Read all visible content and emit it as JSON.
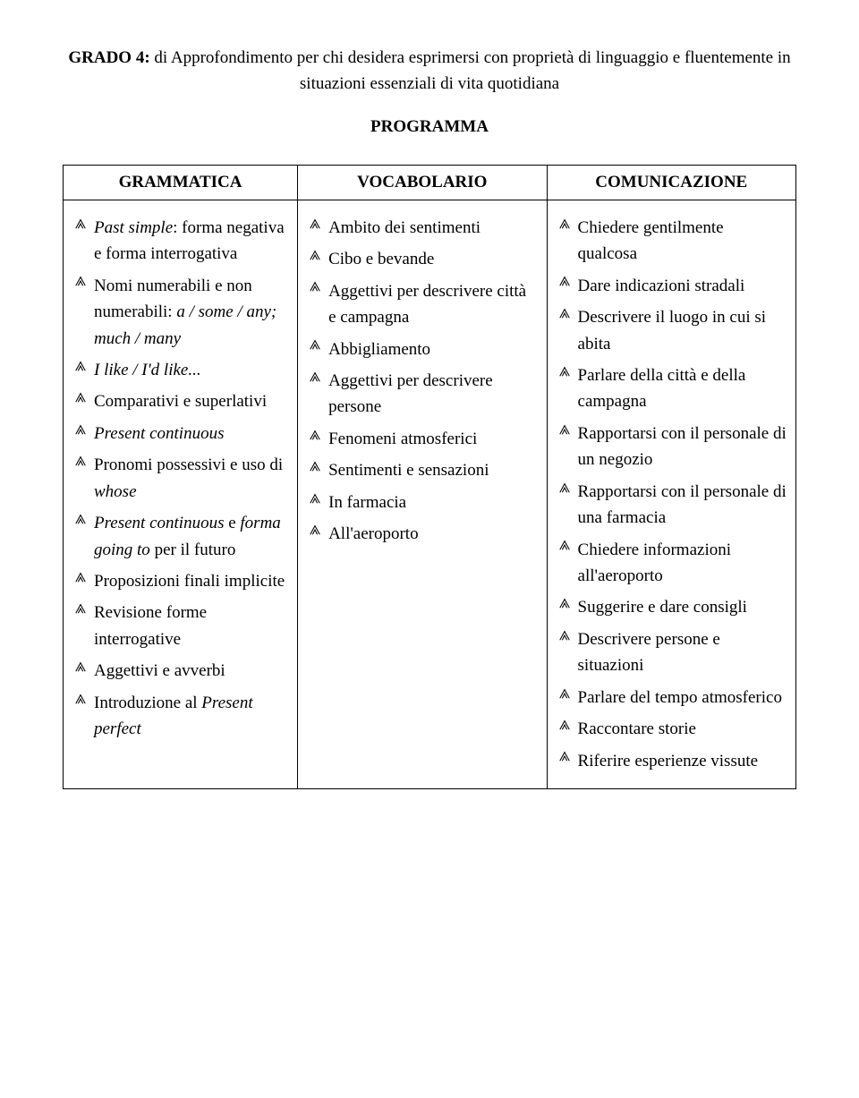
{
  "heading": {
    "level_label": "GRADO 4:",
    "after": " di Approfondimento per chi desidera esprimersi con proprietà di linguaggio e fluentemente in situazioni essenziali di vita quotidiana"
  },
  "program_label": "PROGRAMMA",
  "headers": {
    "col1": "GRAMMATICA",
    "col2": "VOCABOLARIO",
    "col3": "COMUNICAZIONE"
  },
  "grammar": [
    {
      "pre_i": "Past simple",
      "post": ": forma negativa e forma interrogativa"
    },
    {
      "pre": "Nomi numerabili e non numerabili: ",
      "i": "a / some / any; much / many"
    },
    {
      "i": "I like / I'd like..."
    },
    {
      "pre": "Comparativi e superlativi"
    },
    {
      "i": "Present continuous"
    },
    {
      "pre": "Pronomi possessivi e uso di ",
      "i": "whose"
    },
    {
      "pre_i": "Present continuous",
      "mid": " e ",
      "i2": "forma going to",
      "post": " per il futuro"
    },
    {
      "pre": "Proposizioni finali implicite"
    },
    {
      "pre": "Revisione forme interrogative"
    },
    {
      "pre": "Aggettivi e avverbi"
    },
    {
      "pre": "Introduzione al ",
      "i": "Present perfect"
    }
  ],
  "vocab": [
    "Ambito dei sentimenti",
    "Cibo e bevande",
    "Aggettivi per descrivere città e campagna",
    "Abbigliamento",
    "Aggettivi per descrivere persone",
    "Fenomeni atmosferici",
    "Sentimenti e sensazioni",
    "In farmacia",
    "All'aeroporto"
  ],
  "comm": [
    "Chiedere gentilmente qualcosa",
    "Dare indicazioni stradali",
    "Descrivere il luogo in cui si abita",
    "Parlare della città e della campagna",
    "Rapportarsi con il personale di un negozio",
    "Rapportarsi con il personale di una farmacia",
    "Chiedere informazioni all'aeroporto",
    "Suggerire e dare consigli",
    "Descrivere persone e situazioni",
    "Parlare del tempo atmosferico",
    "Raccontare storie",
    "Riferire esperienze vissute"
  ]
}
